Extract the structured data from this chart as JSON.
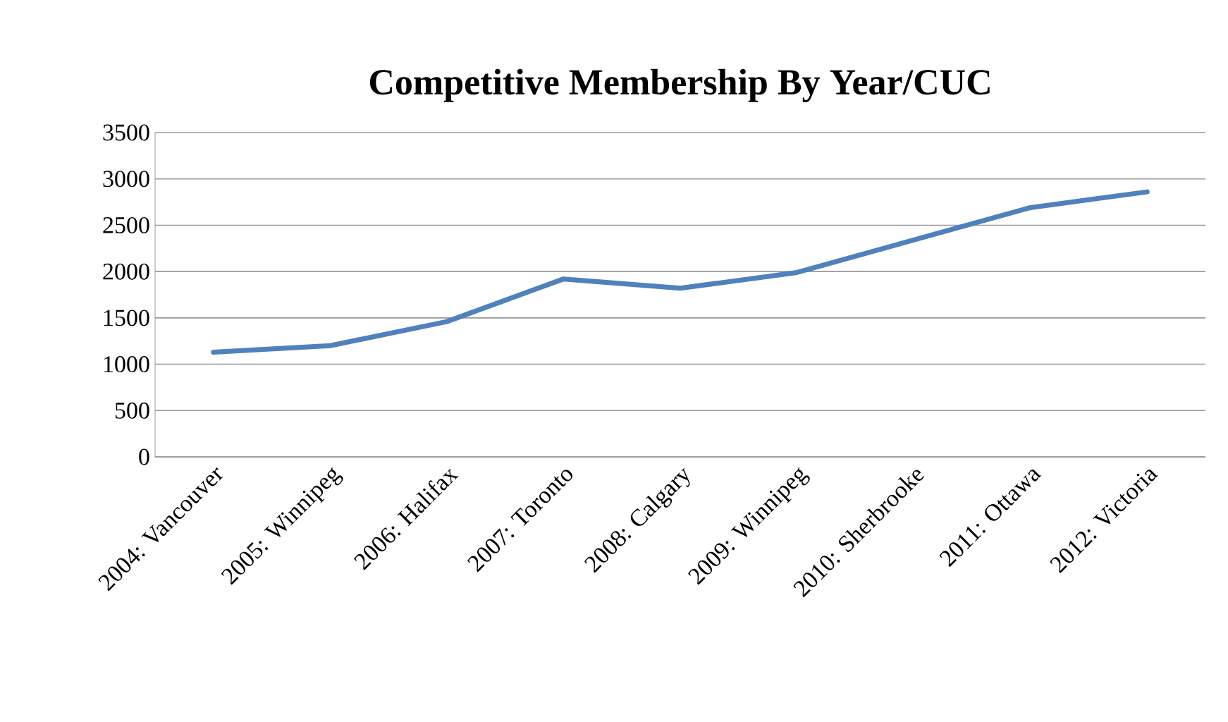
{
  "chart_data": {
    "type": "line",
    "title": "Competitive Membership By Year/CUC",
    "categories": [
      "2004: Vancouver",
      "2005: Winnipeg",
      "2006: Halifax",
      "2007: Toronto",
      "2008: Calgary",
      "2009: Winnipeg",
      "2010: Sherbrooke",
      "2011: Ottawa",
      "2012: Victoria"
    ],
    "series": [
      {
        "color": "#4f81bd",
        "values": [
          1130,
          1200,
          1460,
          1920,
          1820,
          1990,
          2340,
          2690,
          2860
        ]
      }
    ],
    "ylim": [
      0,
      3500
    ],
    "yticks": [
      0,
      500,
      1000,
      1500,
      2000,
      2500,
      3000,
      3500
    ],
    "grid": "y",
    "marker": "none",
    "line_style": "solid"
  }
}
